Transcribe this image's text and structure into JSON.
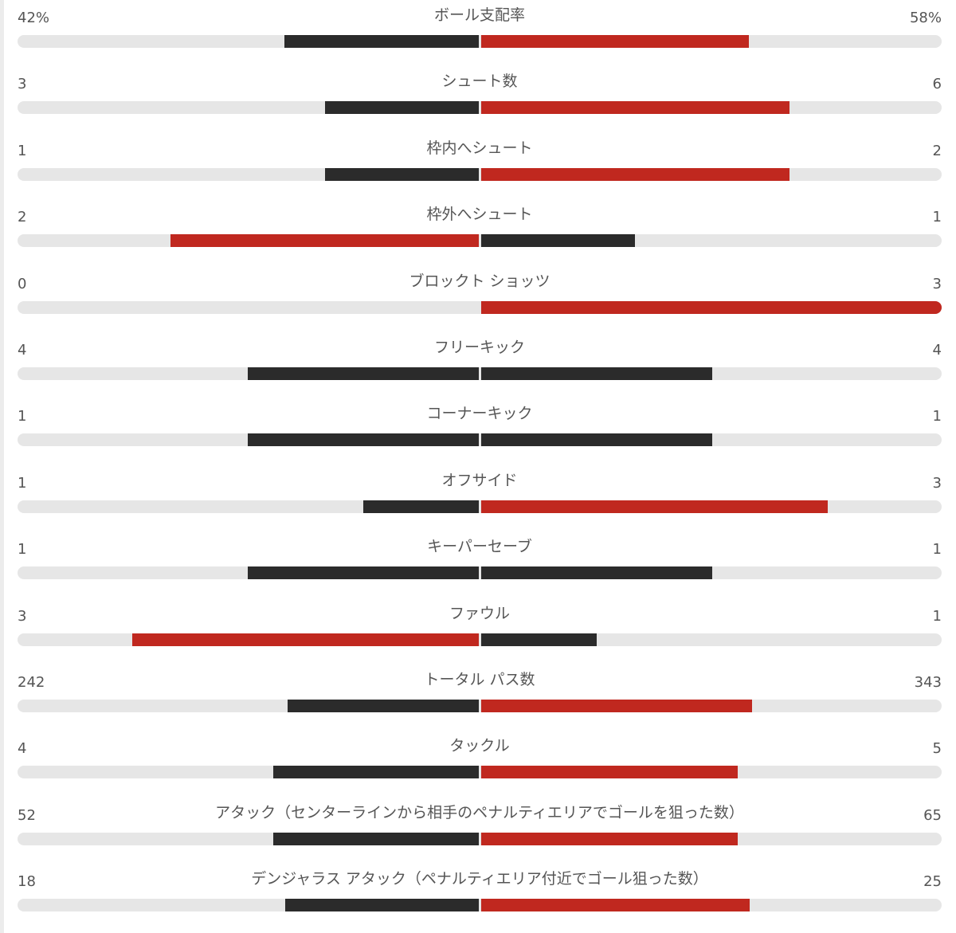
{
  "colors": {
    "leading": "#c0281f",
    "trailing": "#2b2b2b",
    "track": "#e6e6e6",
    "text": "#555555"
  },
  "stats": [
    {
      "label": "ボール支配率",
      "home": "42%",
      "away": "58%",
      "home_share": 0.42,
      "away_share": 0.58
    },
    {
      "label": "シュート数",
      "home": "3",
      "away": "6",
      "home_share": 0.333,
      "away_share": 0.667
    },
    {
      "label": "枠内へシュート",
      "home": "1",
      "away": "2",
      "home_share": 0.333,
      "away_share": 0.667
    },
    {
      "label": "枠外へシュート",
      "home": "2",
      "away": "1",
      "home_share": 0.667,
      "away_share": 0.333
    },
    {
      "label": "ブロックト ショッツ",
      "home": "0",
      "away": "3",
      "home_share": 0,
      "away_share": 1
    },
    {
      "label": "フリーキック",
      "home": "4",
      "away": "4",
      "home_share": 0.5,
      "away_share": 0.5
    },
    {
      "label": "コーナーキック",
      "home": "1",
      "away": "1",
      "home_share": 0.5,
      "away_share": 0.5
    },
    {
      "label": "オフサイド",
      "home": "1",
      "away": "3",
      "home_share": 0.25,
      "away_share": 0.75
    },
    {
      "label": "キーパーセーブ",
      "home": "1",
      "away": "1",
      "home_share": 0.5,
      "away_share": 0.5
    },
    {
      "label": "ファウル",
      "home": "3",
      "away": "1",
      "home_share": 0.75,
      "away_share": 0.25
    },
    {
      "label": "トータル パス数",
      "home": "242",
      "away": "343",
      "home_share": 0.414,
      "away_share": 0.586
    },
    {
      "label": "タックル",
      "home": "4",
      "away": "5",
      "home_share": 0.444,
      "away_share": 0.556
    },
    {
      "label": "アタック（センターラインから相手のペナルティエリアでゴールを狙った数）",
      "home": "52",
      "away": "65",
      "home_share": 0.444,
      "away_share": 0.556
    },
    {
      "label": "デンジャラス アタック（ペナルティエリア付近でゴール狙った数）",
      "home": "18",
      "away": "25",
      "home_share": 0.419,
      "away_share": 0.581
    }
  ]
}
